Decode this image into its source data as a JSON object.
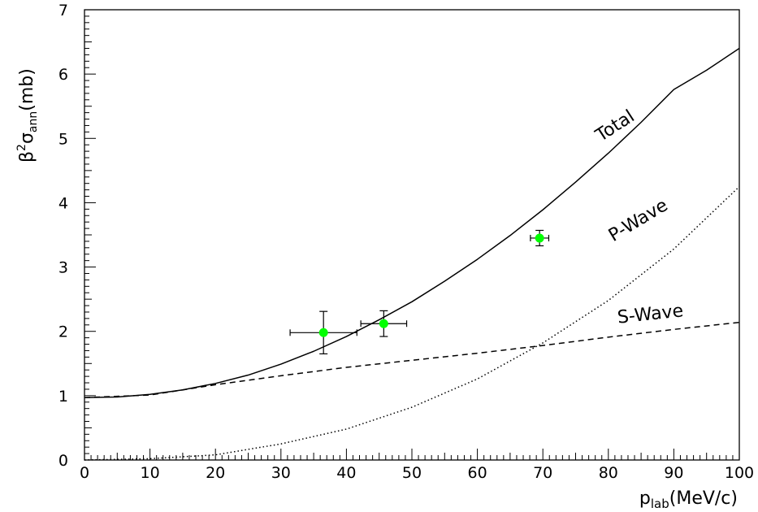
{
  "chart_data": {
    "type": "line",
    "title": "",
    "xlabel": {
      "base": "p",
      "sub": "lab",
      "rest": "(MeV/c)"
    },
    "ylabel": {
      "beta": "β",
      "sup": "2",
      "sigma": "σ",
      "sub": "ann",
      "rest": "(mb)"
    },
    "xlim": [
      0,
      100
    ],
    "ylim": [
      0,
      7
    ],
    "xticks": [
      "0",
      "10",
      "20",
      "30",
      "40",
      "50",
      "60",
      "70",
      "80",
      "90",
      "100"
    ],
    "yticks": [
      "0",
      "1",
      "2",
      "3",
      "4",
      "5",
      "6",
      "7"
    ],
    "grid": false,
    "series": [
      {
        "name": "Total",
        "style": "solid",
        "x": [
          0,
          5,
          10,
          15,
          20,
          25,
          30,
          35,
          40,
          45,
          50,
          55,
          60,
          65,
          70,
          75,
          80,
          85,
          90,
          95,
          100
        ],
        "y": [
          0.97,
          0.98,
          1.02,
          1.09,
          1.19,
          1.32,
          1.49,
          1.69,
          1.92,
          2.18,
          2.46,
          2.78,
          3.12,
          3.49,
          3.89,
          4.32,
          4.77,
          5.25,
          5.76,
          6.06,
          6.4
        ]
      },
      {
        "name": "P-Wave",
        "style": "dotted",
        "x": [
          0,
          10,
          20,
          30,
          40,
          50,
          60,
          70,
          80,
          90,
          100
        ],
        "y": [
          0.0,
          0.02,
          0.08,
          0.25,
          0.48,
          0.82,
          1.26,
          1.82,
          2.48,
          3.28,
          4.25
        ]
      },
      {
        "name": "S-Wave",
        "style": "dashed",
        "x": [
          0,
          10,
          20,
          30,
          40,
          50,
          60,
          70,
          80,
          90,
          100
        ],
        "y": [
          0.97,
          1.01,
          1.17,
          1.31,
          1.44,
          1.55,
          1.66,
          1.78,
          1.91,
          2.03,
          2.14
        ]
      }
    ],
    "points": [
      {
        "x": 36.5,
        "y": 1.98,
        "xerr": 5.1,
        "yerr": 0.33,
        "color": "#00ff00"
      },
      {
        "x": 45.7,
        "y": 2.12,
        "xerr": 3.5,
        "yerr": 0.2,
        "color": "#00ff00"
      },
      {
        "x": 69.5,
        "y": 3.45,
        "xerr": 1.4,
        "yerr": 0.12,
        "color": "#00ff00"
      }
    ],
    "labels": [
      {
        "text": "Total",
        "x": 81.5,
        "y": 5.12,
        "angle": -33
      },
      {
        "text": "P-Wave",
        "x": 85,
        "y": 3.65,
        "angle": -31
      },
      {
        "text": "S-Wave",
        "x": 86.5,
        "y": 2.18,
        "angle": -6
      }
    ]
  }
}
